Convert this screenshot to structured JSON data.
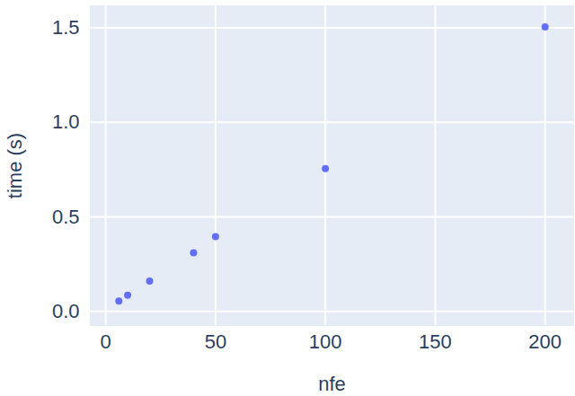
{
  "chart_data": {
    "type": "scatter",
    "x_label": "nfe",
    "y_label": "time (s)",
    "x": [
      6,
      10,
      20,
      40,
      50,
      100,
      200
    ],
    "values": [
      0.055,
      0.085,
      0.16,
      0.31,
      0.395,
      0.755,
      1.505
    ],
    "color": "#636efa",
    "marker": "circle",
    "xlim": [
      -7,
      213
    ],
    "ylim": [
      -0.075,
      1.617
    ],
    "xticks": [
      0,
      50,
      100,
      150,
      200
    ],
    "yticks": [
      0,
      0.5,
      1,
      1.5
    ],
    "grid": true
  }
}
